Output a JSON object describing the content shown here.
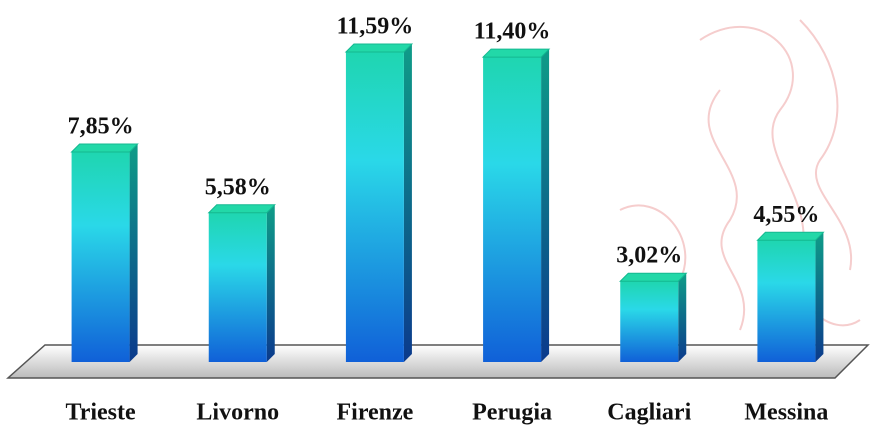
{
  "chart_data": {
    "type": "bar",
    "categories": [
      "Trieste",
      "Livorno",
      "Firenze",
      "Perugia",
      "Cagliari",
      "Messina"
    ],
    "values": [
      7.85,
      5.58,
      11.59,
      11.4,
      3.02,
      4.55
    ],
    "value_labels": [
      "7,85%",
      "5,58%",
      "11,59%",
      "11,40%",
      "3,02%",
      "4,55%"
    ]
  }
}
